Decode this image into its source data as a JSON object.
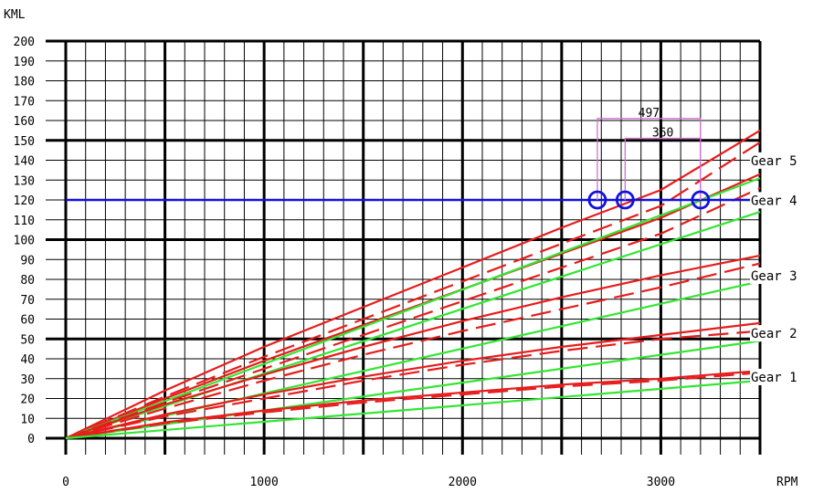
{
  "chart_data": {
    "type": "line",
    "ylabel": "KML",
    "xlabel": "RPM",
    "xlim": [
      0,
      3500
    ],
    "ylim": [
      0,
      200
    ],
    "x_ticks": [
      "0",
      "1000",
      "2000",
      "3000"
    ],
    "y_ticks": [
      "0",
      "10",
      "20",
      "30",
      "40",
      "50",
      "60",
      "70",
      "80",
      "90",
      "100",
      "110",
      "120",
      "130",
      "140",
      "150",
      "160",
      "170",
      "180",
      "190",
      "200"
    ],
    "grid": true,
    "colors": {
      "red": "#e81c1c",
      "green": "#33e633",
      "blue": "#1010e0",
      "magenta": "#d070d0"
    },
    "gear_labels": [
      {
        "text": "Gear 5",
        "y": 138
      },
      {
        "text": "Gear 4",
        "y": 118
      },
      {
        "text": "Gear 3",
        "y": 80
      },
      {
        "text": "Gear 2",
        "y": 51
      },
      {
        "text": "Gear 1",
        "y": 29
      }
    ],
    "series": [
      {
        "style": "solid",
        "color": "red",
        "points": [
          [
            0,
            0
          ],
          [
            500,
            24
          ],
          [
            1000,
            46
          ],
          [
            1500,
            66
          ],
          [
            2000,
            86
          ],
          [
            2500,
            106
          ],
          [
            3000,
            125
          ],
          [
            3500,
            155
          ]
        ]
      },
      {
        "style": "dashed",
        "color": "red",
        "points": [
          [
            0,
            0
          ],
          [
            500,
            21
          ],
          [
            1000,
            41
          ],
          [
            1500,
            60
          ],
          [
            2000,
            79
          ],
          [
            2500,
            98
          ],
          [
            3000,
            117
          ],
          [
            3500,
            149
          ]
        ]
      },
      {
        "style": "solid",
        "color": "red",
        "points": [
          [
            0,
            0
          ],
          [
            500,
            20
          ],
          [
            1000,
            39
          ],
          [
            1500,
            57
          ],
          [
            2000,
            75
          ],
          [
            2500,
            93
          ],
          [
            3000,
            111
          ],
          [
            3500,
            133
          ]
        ]
      },
      {
        "style": "solid",
        "color": "green",
        "points": [
          [
            0,
            0
          ],
          [
            3500,
            131
          ]
        ]
      },
      {
        "style": "dashed",
        "color": "red",
        "points": [
          [
            0,
            0
          ],
          [
            500,
            18
          ],
          [
            1000,
            35
          ],
          [
            1500,
            52
          ],
          [
            2000,
            69
          ],
          [
            2500,
            86
          ],
          [
            3000,
            103
          ],
          [
            3500,
            126
          ]
        ]
      },
      {
        "style": "solid",
        "color": "green",
        "points": [
          [
            0,
            0
          ],
          [
            3500,
            114
          ]
        ]
      },
      {
        "style": "solid",
        "color": "red",
        "points": [
          [
            0,
            0
          ],
          [
            500,
            17
          ],
          [
            1000,
            32
          ],
          [
            1500,
            46
          ],
          [
            2000,
            59
          ],
          [
            2500,
            71
          ],
          [
            3000,
            82
          ],
          [
            3500,
            92
          ]
        ]
      },
      {
        "style": "dashed",
        "color": "red",
        "points": [
          [
            0,
            0
          ],
          [
            500,
            15
          ],
          [
            1000,
            29
          ],
          [
            1500,
            42
          ],
          [
            2000,
            54
          ],
          [
            2500,
            65
          ],
          [
            3000,
            76
          ],
          [
            3500,
            88
          ]
        ]
      },
      {
        "style": "solid",
        "color": "green",
        "points": [
          [
            0,
            0
          ],
          [
            3500,
            79
          ]
        ]
      },
      {
        "style": "solid",
        "color": "red",
        "points": [
          [
            0,
            0
          ],
          [
            500,
            12
          ],
          [
            1000,
            22
          ],
          [
            1500,
            31
          ],
          [
            2000,
            39
          ],
          [
            2500,
            46
          ],
          [
            3000,
            52
          ],
          [
            3500,
            58
          ]
        ]
      },
      {
        "style": "dashed",
        "color": "red",
        "points": [
          [
            0,
            0
          ],
          [
            500,
            11
          ],
          [
            1000,
            20
          ],
          [
            1500,
            29
          ],
          [
            2000,
            37
          ],
          [
            2500,
            44
          ],
          [
            3000,
            50
          ],
          [
            3500,
            54
          ]
        ]
      },
      {
        "style": "solid",
        "color": "green",
        "points": [
          [
            0,
            0
          ],
          [
            3500,
            49
          ]
        ]
      },
      {
        "style": "solid",
        "color": "red",
        "points": [
          [
            0,
            0
          ],
          [
            500,
            8
          ],
          [
            1000,
            14
          ],
          [
            1500,
            19
          ],
          [
            2000,
            23
          ],
          [
            2500,
            27
          ],
          [
            3000,
            30
          ],
          [
            3500,
            34
          ]
        ]
      },
      {
        "style": "dashed",
        "color": "red",
        "points": [
          [
            0,
            0
          ],
          [
            500,
            7.5
          ],
          [
            1000,
            13
          ],
          [
            1500,
            18
          ],
          [
            2000,
            22
          ],
          [
            2500,
            26
          ],
          [
            3000,
            29
          ],
          [
            3500,
            33
          ]
        ]
      },
      {
        "style": "solid",
        "color": "green",
        "points": [
          [
            0,
            0
          ],
          [
            3500,
            29
          ]
        ]
      }
    ],
    "reference_line": {
      "y": 120,
      "color": "blue"
    },
    "markers": [
      {
        "x": 2680,
        "y": 120
      },
      {
        "x": 2820,
        "y": 120
      },
      {
        "x": 3200,
        "y": 120
      }
    ],
    "annotations": [
      {
        "text": "497",
        "x_from": 2680,
        "x_to": 3200,
        "y": 161
      },
      {
        "text": "360",
        "x_from": 2820,
        "x_to": 3200,
        "y": 151
      }
    ]
  }
}
